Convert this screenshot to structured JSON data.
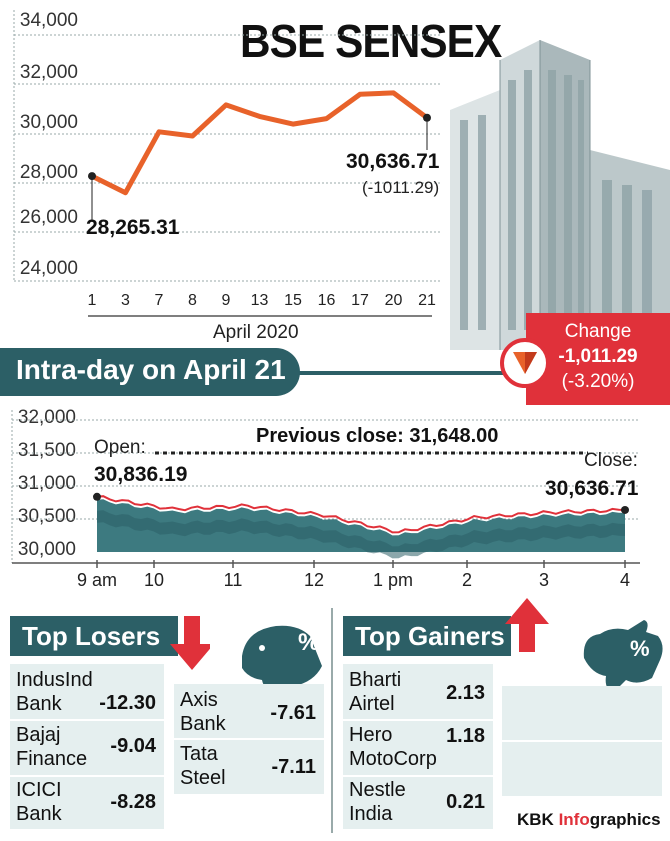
{
  "title": "BSE SENSEX",
  "monthly": {
    "y_ticks": [
      "34,000",
      "32,000",
      "30,000",
      "28,000",
      "26,000",
      "24,000"
    ],
    "x_ticks": [
      "1",
      "3",
      "7",
      "8",
      "9",
      "13",
      "15",
      "16",
      "17",
      "20",
      "21"
    ],
    "x_caption": "April 2020",
    "start_label": "28,265.31",
    "end_label": "30,636.71",
    "end_change": "(-1011.29)"
  },
  "change": {
    "heading": "Change",
    "value": "-1,011.29",
    "pct": "(-3.20%)"
  },
  "intraday": {
    "banner": "Intra-day on April 21",
    "y_ticks": [
      "32,000",
      "31,500",
      "31,000",
      "30,500",
      "30,000"
    ],
    "x_ticks": [
      "9 am",
      "10",
      "11",
      "12",
      "1 pm",
      "2",
      "3",
      "4"
    ],
    "open_label": "Open:",
    "open_value": "30,836.19",
    "prev_close": "Previous close: 31,648.00",
    "close_label": "Close:",
    "close_value": "30,636.71"
  },
  "losers": {
    "heading": "Top Losers",
    "pct_badge": "%",
    "col1": [
      {
        "name": "IndusInd Bank",
        "value": "-12.30"
      },
      {
        "name": "Bajaj Finance",
        "value": "-9.04"
      },
      {
        "name": "ICICI Bank",
        "value": "-8.28"
      }
    ],
    "col2": [
      {
        "name": "Axis Bank",
        "value": "-7.61"
      },
      {
        "name": "Tata Steel",
        "value": "-7.11"
      }
    ]
  },
  "gainers": {
    "heading": "Top Gainers",
    "pct_badge": "%",
    "items": [
      {
        "name": "Bharti Airtel",
        "value": "2.13"
      },
      {
        "name": "Hero MotoCorp",
        "value": "1.18"
      },
      {
        "name": "Nestle India",
        "value": "0.21"
      }
    ]
  },
  "brand": {
    "prefix": "KBK ",
    "highlight": "Info",
    "suffix": "graphics"
  },
  "colors": {
    "line": "#e8622a",
    "teal": "#2c5f66",
    "red": "#e0313a",
    "fill": "#3d7a80"
  },
  "chart_data": [
    {
      "type": "line",
      "title": "BSE SENSEX",
      "xlabel": "April 2020",
      "ylabel": "",
      "categories": [
        "1",
        "3",
        "7",
        "8",
        "9",
        "13",
        "15",
        "16",
        "17",
        "20",
        "21"
      ],
      "values": [
        28265.31,
        27590,
        30067,
        29894,
        31159,
        30690,
        30380,
        30603,
        31588,
        31648,
        30636.71
      ],
      "ylim": [
        24000,
        34000
      ],
      "grid": false
    },
    {
      "type": "area",
      "title": "Intra-day on April 21",
      "xlabel": "",
      "ylabel": "",
      "x": [
        "9 am",
        "10",
        "11",
        "12",
        "1 pm",
        "2",
        "3",
        "4"
      ],
      "values": [
        30836.19,
        30650,
        30700,
        30560,
        30300,
        30520,
        30600,
        30636.71
      ],
      "previous_close": 31648.0,
      "ylim": [
        30000,
        32000
      ],
      "grid": false
    }
  ]
}
